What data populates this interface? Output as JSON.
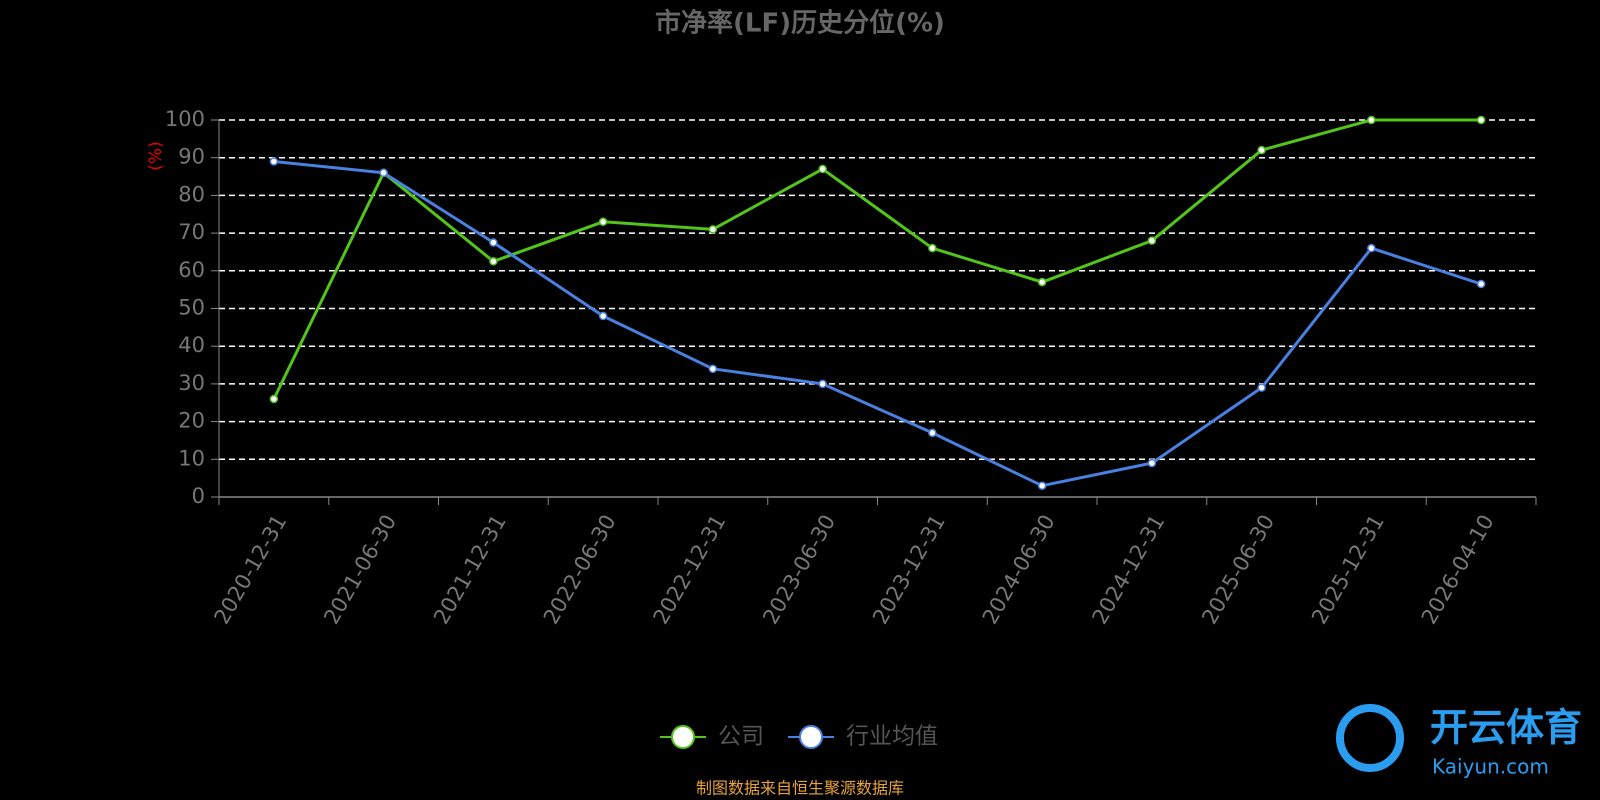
{
  "chart_data": {
    "type": "line",
    "title": "市净率(LF)历史分位(%)",
    "y_label": "(%)",
    "categories": [
      "2020-12-31",
      "2021-06-30",
      "2021-12-31",
      "2022-06-30",
      "2022-12-31",
      "2023-06-30",
      "2023-12-31",
      "2024-06-30",
      "2024-12-31",
      "2025-06-30",
      "2025-12-31",
      "2026-04-10"
    ],
    "series": [
      {
        "name": "公司",
        "color": "#52c41a",
        "values": [
          26,
          86,
          62.5,
          73,
          71,
          87,
          66,
          57,
          68,
          92,
          100,
          100
        ]
      },
      {
        "name": "行业均值",
        "color": "#4a80e0",
        "values": [
          89,
          86,
          67.5,
          48,
          34,
          30,
          17,
          3,
          9,
          29,
          66,
          56.5
        ]
      }
    ],
    "ylim": [
      0,
      100
    ],
    "yticks": [
      0,
      10,
      20,
      30,
      40,
      50,
      60,
      70,
      80,
      90,
      100
    ],
    "grid": true,
    "legend": "bottom",
    "source": "制图数据来自恒生聚源数据库",
    "watermark": {
      "text": "开云体育",
      "subtext": "Kaiyun.com"
    }
  }
}
